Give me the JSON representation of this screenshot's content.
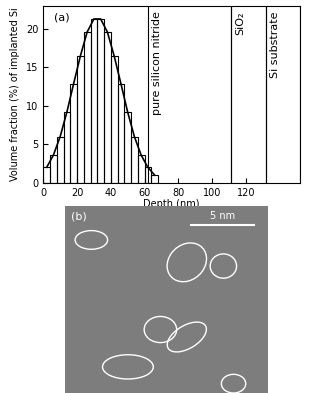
{
  "chart_data": {
    "type": "histogram",
    "panel_label": "(a)",
    "x_label": "Depth (nm)",
    "y_label": "Volume fraction (%) of implanted Si",
    "bins": [
      0,
      4,
      8,
      12,
      16,
      20,
      24,
      28,
      32,
      36,
      40,
      44,
      48,
      52,
      56,
      60,
      64,
      68
    ],
    "counts": [
      2.0,
      3.6,
      6.0,
      9.2,
      12.9,
      16.5,
      19.6,
      21.3,
      21.3,
      19.6,
      16.5,
      12.9,
      9.2,
      6.0,
      3.6,
      2.0,
      1.0
    ],
    "color": "black",
    "fit": {
      "type": "line",
      "color": "black",
      "x": [
        2,
        6,
        10,
        14,
        18,
        22,
        26,
        30,
        34,
        38,
        42,
        46,
        50,
        54,
        58,
        62,
        66
      ],
      "values": [
        2.0,
        3.6,
        6.0,
        9.2,
        12.9,
        16.5,
        19.6,
        21.3,
        21.3,
        19.6,
        16.5,
        12.9,
        9.2,
        6.0,
        3.6,
        2.0,
        1.0
      ]
    },
    "regions": [
      {
        "label": "pure silicon nitride",
        "start": 62,
        "end": 111
      },
      {
        "label": "SiO₂",
        "start": 111,
        "end": 132
      },
      {
        "label": "Si substrate",
        "start": 132,
        "end": 152
      }
    ],
    "xlim": [
      0,
      152
    ],
    "xticks": [
      0,
      20,
      40,
      60,
      80,
      100,
      120
    ],
    "ylim": [
      0,
      23
    ],
    "yticks": [
      0,
      5,
      10,
      15,
      20
    ]
  },
  "image": {
    "panel_label": "(b)",
    "scale_bar": "5 nm"
  }
}
